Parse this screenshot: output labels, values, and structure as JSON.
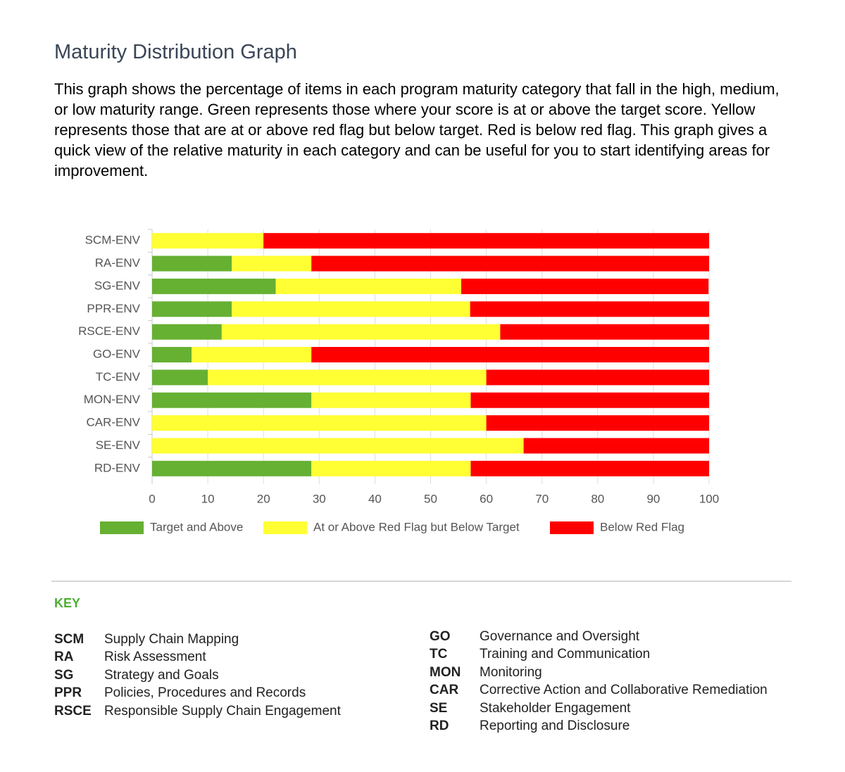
{
  "title": "Maturity Distribution Graph",
  "description": "This graph shows the percentage of items in each program maturity category that fall in the high, medium, or low maturity range. Green represents those where your score is at or above the target score. Yellow represents those that are at or above red flag but below target. Red is below red flag. This graph gives a quick view of the relative maturity in each category and can be useful for you to start identifying areas for improvement.",
  "chart_data": {
    "type": "stacked_bar",
    "orientation": "horizontal",
    "categories": [
      "SCM-ENV",
      "RA-ENV",
      "SG-ENV",
      "PPR-ENV",
      "RSCE-ENV",
      "GO-ENV",
      "TC-ENV",
      "MON-ENV",
      "CAR-ENV",
      "SE-ENV",
      "RD-ENV"
    ],
    "series": [
      {
        "name": "Target and Above",
        "color": "#66b032",
        "values": [
          0,
          14.3,
          22.2,
          14.3,
          12.5,
          7.1,
          10,
          28.6,
          0,
          0,
          28.6
        ]
      },
      {
        "name": "At or Above Red Flag but Below Target",
        "color": "#ffff33",
        "values": [
          20,
          14.3,
          33.3,
          42.8,
          50,
          21.5,
          50,
          28.6,
          60,
          66.7,
          28.6
        ]
      },
      {
        "name": "Below Red Flag",
        "color": "#ff0000",
        "values": [
          80,
          71.4,
          44.4,
          42.9,
          37.5,
          71.4,
          40,
          42.8,
          40,
          33.3,
          42.8
        ]
      }
    ],
    "xlim": [
      0,
      100
    ],
    "xticks": [
      0,
      10,
      20,
      30,
      40,
      50,
      60,
      70,
      80,
      90,
      100
    ],
    "grid": true,
    "legend": "bottom"
  },
  "key": {
    "title": "KEY",
    "left": [
      {
        "abbr": "SCM",
        "name": "Supply Chain Mapping"
      },
      {
        "abbr": "RA",
        "name": "Risk Assessment"
      },
      {
        "abbr": "SG",
        "name": "Strategy and Goals"
      },
      {
        "abbr": "PPR",
        "name": "Policies, Procedures and Records"
      },
      {
        "abbr": "RSCE",
        "name": "Responsible Supply Chain Engagement"
      }
    ],
    "right": [
      {
        "abbr": "GO",
        "name": "Governance and Oversight"
      },
      {
        "abbr": "TC",
        "name": "Training and Communication"
      },
      {
        "abbr": "MON",
        "name": "Monitoring"
      },
      {
        "abbr": "CAR",
        "name": "Corrective Action and Collaborative Remediation"
      },
      {
        "abbr": "SE",
        "name": "Stakeholder Engagement"
      },
      {
        "abbr": "RD",
        "name": "Reporting and Disclosure"
      }
    ]
  }
}
